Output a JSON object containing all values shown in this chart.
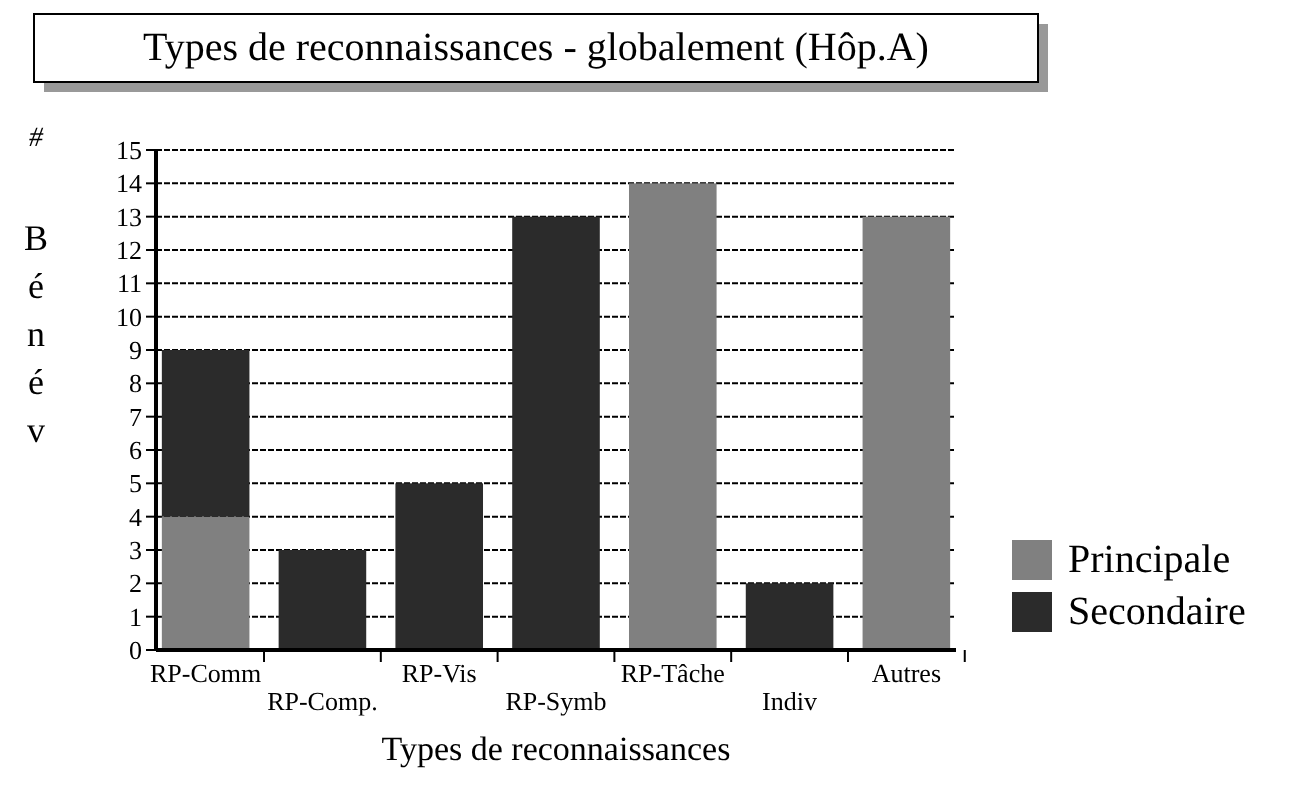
{
  "chart_data": {
    "type": "bar",
    "title": "Types de reconnaissances - globalement (Hôp.A)",
    "xlabel": "Types de reconnaissances",
    "ylabel": "# Bénév",
    "categories": [
      "RP-Comm",
      "RP-Comp.",
      "RP-Vis",
      "RP-Symb",
      "RP-Tâche",
      "Indiv",
      "Autres"
    ],
    "series": [
      {
        "name": "Principale",
        "color": "#808080",
        "values": [
          4,
          0,
          0,
          0,
          14,
          0,
          13
        ]
      },
      {
        "name": "Secondaire",
        "color": "#2b2b2b",
        "values": [
          5,
          3,
          5,
          13,
          0,
          2,
          0
        ]
      }
    ],
    "stacked": true,
    "ylim": [
      0,
      15
    ],
    "yticks": [
      0,
      1,
      2,
      3,
      4,
      5,
      6,
      7,
      8,
      9,
      10,
      11,
      12,
      13,
      14,
      15
    ],
    "grid": "y",
    "legend": "bottom right"
  }
}
